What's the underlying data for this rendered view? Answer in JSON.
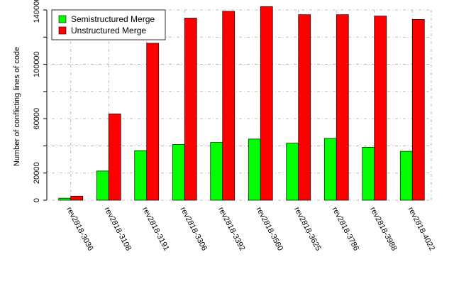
{
  "chart_data": {
    "type": "bar",
    "categories": [
      "rev2818-3036",
      "rev2818-3108",
      "rev2818-3191",
      "rev2818-3306",
      "rev2818-3392",
      "rev2818-3560",
      "rev2818-3625",
      "rev2818-3786",
      "rev2818-3988",
      "rev2818-4022"
    ],
    "series": [
      {
        "name": "Semistructured Merge",
        "color": "#00ff00",
        "values": [
          1500,
          21500,
          36500,
          41000,
          42500,
          45000,
          42000,
          45500,
          39000,
          36000
        ]
      },
      {
        "name": "Unstructured Merge",
        "color": "#ff0000",
        "values": [
          3000,
          63500,
          115500,
          134000,
          139000,
          142500,
          136500,
          136500,
          135500,
          133000
        ]
      }
    ],
    "title": "",
    "xlabel": "",
    "ylabel": "Number of conflicting lines of code",
    "ylim": [
      0,
      140000
    ],
    "y_tick_labels": [
      "0",
      "20000",
      "60000",
      "100000",
      "140000"
    ],
    "y_tick_values": [
      0,
      20000,
      60000,
      100000,
      140000
    ],
    "y_minor_ticks": [
      0,
      20000,
      40000,
      60000,
      80000,
      100000,
      120000,
      140000
    ],
    "grid": true,
    "legend_position": "top-left"
  }
}
